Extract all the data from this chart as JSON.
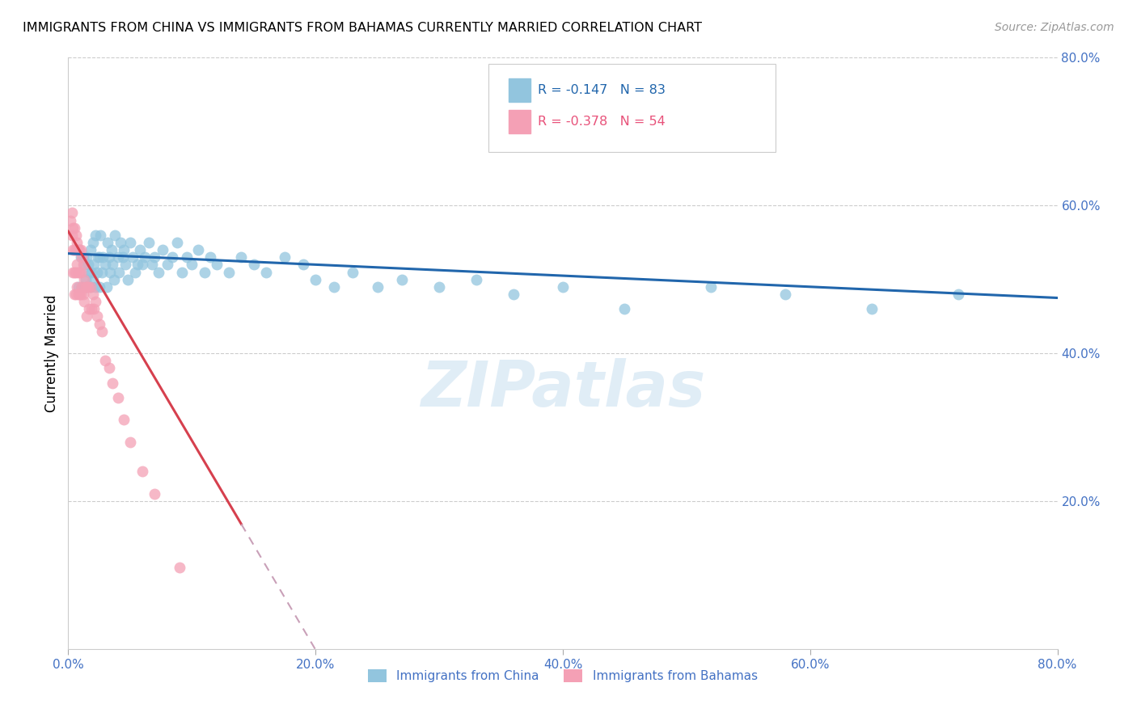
{
  "title": "IMMIGRANTS FROM CHINA VS IMMIGRANTS FROM BAHAMAS CURRENTLY MARRIED CORRELATION CHART",
  "source": "Source: ZipAtlas.com",
  "ylabel": "Currently Married",
  "xlim": [
    0.0,
    0.8
  ],
  "ylim": [
    0.0,
    0.8
  ],
  "xtick_labels": [
    "0.0%",
    "20.0%",
    "40.0%",
    "60.0%",
    "80.0%"
  ],
  "xtick_vals": [
    0.0,
    0.2,
    0.4,
    0.6,
    0.8
  ],
  "ytick_labels_right": [
    "20.0%",
    "40.0%",
    "60.0%",
    "80.0%"
  ],
  "ytick_vals_right": [
    0.2,
    0.4,
    0.6,
    0.8
  ],
  "legend1_label": "Immigrants from China",
  "legend2_label": "Immigrants from Bahamas",
  "R_china": -0.147,
  "N_china": 83,
  "R_bahamas": -0.378,
  "N_bahamas": 54,
  "color_china": "#92c5de",
  "color_bahamas": "#f4a0b5",
  "trendline_china": "#2166ac",
  "trendline_bahamas": "#d6404e",
  "trendline_bahamas_ext_color": "#c9a0b8",
  "watermark": "ZIPatlas",
  "china_x": [
    0.008,
    0.01,
    0.011,
    0.012,
    0.013,
    0.014,
    0.015,
    0.015,
    0.016,
    0.017,
    0.018,
    0.018,
    0.019,
    0.02,
    0.02,
    0.021,
    0.022,
    0.022,
    0.023,
    0.024,
    0.025,
    0.025,
    0.026,
    0.027,
    0.028,
    0.03,
    0.031,
    0.032,
    0.033,
    0.034,
    0.035,
    0.036,
    0.037,
    0.038,
    0.04,
    0.041,
    0.042,
    0.044,
    0.045,
    0.046,
    0.048,
    0.05,
    0.052,
    0.054,
    0.056,
    0.058,
    0.06,
    0.062,
    0.065,
    0.068,
    0.07,
    0.073,
    0.076,
    0.08,
    0.084,
    0.088,
    0.092,
    0.096,
    0.1,
    0.105,
    0.11,
    0.115,
    0.12,
    0.13,
    0.14,
    0.15,
    0.16,
    0.175,
    0.19,
    0.2,
    0.215,
    0.23,
    0.25,
    0.27,
    0.3,
    0.33,
    0.36,
    0.4,
    0.45,
    0.52,
    0.58,
    0.65,
    0.72
  ],
  "china_y": [
    0.49,
    0.53,
    0.49,
    0.53,
    0.52,
    0.5,
    0.53,
    0.49,
    0.52,
    0.51,
    0.54,
    0.49,
    0.51,
    0.55,
    0.5,
    0.52,
    0.49,
    0.56,
    0.51,
    0.53,
    0.53,
    0.49,
    0.56,
    0.51,
    0.53,
    0.52,
    0.49,
    0.55,
    0.53,
    0.51,
    0.54,
    0.52,
    0.5,
    0.56,
    0.53,
    0.51,
    0.55,
    0.53,
    0.54,
    0.52,
    0.5,
    0.55,
    0.53,
    0.51,
    0.52,
    0.54,
    0.52,
    0.53,
    0.55,
    0.52,
    0.53,
    0.51,
    0.54,
    0.52,
    0.53,
    0.55,
    0.51,
    0.53,
    0.52,
    0.54,
    0.51,
    0.53,
    0.52,
    0.51,
    0.53,
    0.52,
    0.51,
    0.53,
    0.52,
    0.5,
    0.49,
    0.51,
    0.49,
    0.5,
    0.49,
    0.5,
    0.48,
    0.49,
    0.46,
    0.49,
    0.48,
    0.46,
    0.48
  ],
  "bahamas_x": [
    0.002,
    0.003,
    0.003,
    0.004,
    0.004,
    0.004,
    0.005,
    0.005,
    0.005,
    0.005,
    0.006,
    0.006,
    0.006,
    0.006,
    0.007,
    0.007,
    0.007,
    0.008,
    0.008,
    0.008,
    0.009,
    0.009,
    0.009,
    0.01,
    0.01,
    0.01,
    0.011,
    0.011,
    0.012,
    0.012,
    0.013,
    0.013,
    0.014,
    0.015,
    0.015,
    0.016,
    0.017,
    0.018,
    0.019,
    0.02,
    0.021,
    0.022,
    0.023,
    0.025,
    0.027,
    0.03,
    0.033,
    0.036,
    0.04,
    0.045,
    0.05,
    0.06,
    0.07,
    0.09
  ],
  "bahamas_y": [
    0.58,
    0.59,
    0.56,
    0.57,
    0.54,
    0.51,
    0.57,
    0.54,
    0.51,
    0.48,
    0.56,
    0.54,
    0.51,
    0.48,
    0.55,
    0.52,
    0.49,
    0.54,
    0.51,
    0.48,
    0.54,
    0.51,
    0.48,
    0.54,
    0.51,
    0.48,
    0.53,
    0.49,
    0.52,
    0.48,
    0.5,
    0.47,
    0.49,
    0.49,
    0.45,
    0.49,
    0.46,
    0.49,
    0.46,
    0.48,
    0.46,
    0.47,
    0.45,
    0.44,
    0.43,
    0.39,
    0.38,
    0.36,
    0.34,
    0.31,
    0.28,
    0.24,
    0.21,
    0.11
  ]
}
